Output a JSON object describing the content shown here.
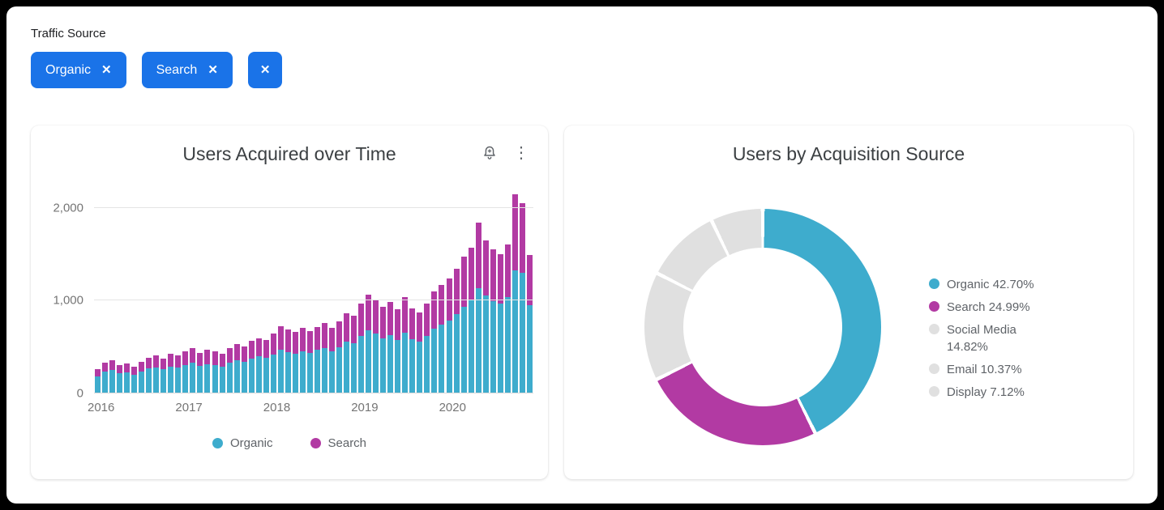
{
  "filter": {
    "label": "Traffic Source",
    "close_glyph": "✕",
    "chips": [
      {
        "label": "Organic"
      },
      {
        "label": "Search"
      },
      {
        "label": ""
      }
    ]
  },
  "icons": {
    "kebab_menu": "⋮"
  },
  "colors": {
    "chip_blue": "#1a73e8",
    "organic": "#3eaccd",
    "search": "#b23aa3",
    "other_gray": "#e0e0e0",
    "grid": "#e4e4e4",
    "axis_text": "#757575"
  },
  "chart_data": [
    {
      "type": "bar",
      "stacked": true,
      "title": "Users Acquired over Time",
      "x_tick_labels": [
        "2016",
        "2017",
        "2018",
        "2019",
        "2020"
      ],
      "y_ticks": [
        {
          "label": "0",
          "value": 0
        },
        {
          "label": "1,000",
          "value": 1000
        },
        {
          "label": "2,000",
          "value": 2000
        }
      ],
      "ylim": [
        0,
        2200
      ],
      "legend_position": "bottom",
      "series": [
        {
          "name": "Organic",
          "color": "#3eaccd",
          "values": [
            185,
            235,
            250,
            215,
            230,
            205,
            240,
            268,
            282,
            258,
            292,
            280,
            308,
            328,
            298,
            318,
            308,
            288,
            328,
            358,
            342,
            378,
            398,
            388,
            418,
            468,
            448,
            428,
            458,
            438,
            468,
            488,
            458,
            498,
            558,
            538,
            618,
            678,
            648,
            598,
            628,
            578,
            658,
            588,
            558,
            618,
            698,
            738,
            788,
            858,
            938,
            1008,
            1138,
            1058,
            998,
            968,
            1038,
            1328,
            1298,
            948
          ]
        },
        {
          "name": "Search",
          "color": "#b23aa3",
          "values": [
            75,
            100,
            110,
            90,
            95,
            85,
            105,
            120,
            128,
            115,
            138,
            132,
            148,
            158,
            142,
            152,
            148,
            138,
            158,
            178,
            168,
            188,
            198,
            192,
            228,
            258,
            242,
            232,
            248,
            238,
            252,
            268,
            248,
            278,
            308,
            298,
            348,
            388,
            368,
            338,
            358,
            328,
            378,
            332,
            318,
            352,
            398,
            428,
            448,
            488,
            538,
            568,
            708,
            588,
            558,
            538,
            568,
            818,
            758,
            548
          ]
        }
      ]
    },
    {
      "type": "pie",
      "donut": true,
      "title": "Users by Acquisition Source",
      "legend_position": "right",
      "slices": [
        {
          "label": "Organic",
          "value": 42.7,
          "display": "Organic 42.70%",
          "color": "#3eaccd"
        },
        {
          "label": "Search",
          "value": 24.99,
          "display": "Search 24.99%",
          "color": "#b23aa3"
        },
        {
          "label": "Social Media",
          "value": 14.82,
          "display": "Social Media 14.82%",
          "color": "#e0e0e0"
        },
        {
          "label": "Email",
          "value": 10.37,
          "display": "Email 10.37%",
          "color": "#e0e0e0"
        },
        {
          "label": "Display",
          "value": 7.12,
          "display": "Display 7.12%",
          "color": "#e0e0e0"
        }
      ]
    }
  ]
}
